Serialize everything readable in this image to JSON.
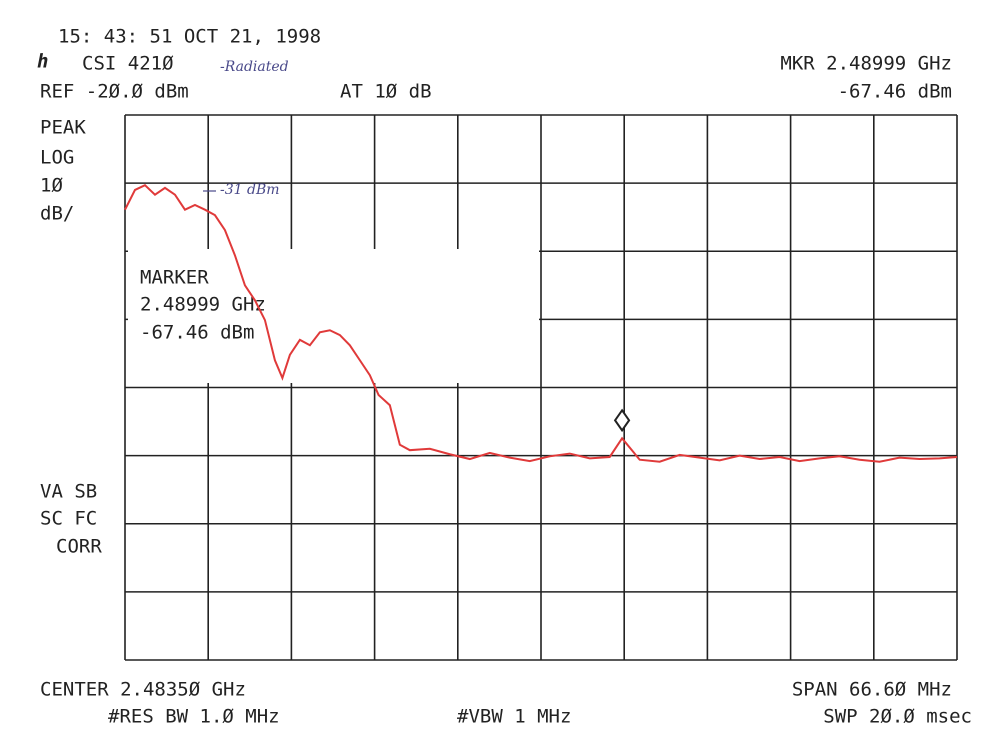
{
  "header": {
    "timestamp": "15: 43: 51 OCT 21, 1998",
    "instrument": "CSI 421Ø",
    "handwritten_note": "-Radiated",
    "marker_freq": "MKR 2.48999 GHz",
    "reference": "REF -2Ø.Ø dBm",
    "attenuation": "AT 1Ø dB",
    "marker_level": "-67.46 dBm"
  },
  "left_labels": [
    "PEAK",
    "LOG",
    "1Ø",
    "dB/",
    "VA SB",
    "SC FC",
    "CORR"
  ],
  "marker_box": [
    "MARKER",
    "2.48999 GHz",
    "-67.46 dBm"
  ],
  "peak_note": "-31 dBm",
  "footer": {
    "center": "CENTER 2.4835Ø GHz",
    "span": "SPAN 66.6Ø MHz",
    "res_bw": "#RES BW 1.Ø MHz",
    "vbw": "#VBW 1 MHz",
    "sweep": "SWP 2Ø.Ø msec"
  },
  "chart_data": {
    "type": "line",
    "xlim": [
      2.4502,
      2.5168
    ],
    "ylim": [
      -100,
      -20
    ],
    "x": [
      2.4502,
      2.451,
      2.4518,
      2.4526,
      2.4534,
      2.4542,
      2.455,
      2.4558,
      2.4566,
      2.4574,
      2.4582,
      2.459,
      2.4598,
      2.4606,
      2.4614,
      2.4622,
      2.4628,
      2.4634,
      2.4642,
      2.465,
      2.4658,
      2.4666,
      2.4674,
      2.4682,
      2.469,
      2.4698,
      2.4705,
      2.4714,
      2.4722,
      2.473,
      2.4746,
      2.4762,
      2.4778,
      2.4794,
      2.481,
      2.4826,
      2.4842,
      2.4858,
      2.4874,
      2.489,
      2.48999,
      2.4914,
      2.493,
      2.4946,
      2.4962,
      2.4978,
      2.4994,
      2.501,
      2.5026,
      2.5042,
      2.5058,
      2.5074,
      2.509,
      2.5106,
      2.5122,
      2.5138,
      2.5154,
      2.5168
    ],
    "series": [
      {
        "color": "#e03a3a",
        "values": [
          -33.9,
          -31.0,
          -30.3,
          -31.7,
          -30.7,
          -31.7,
          -33.9,
          -33.2,
          -33.9,
          -34.7,
          -36.9,
          -40.6,
          -45.0,
          -47.2,
          -50.1,
          -56.0,
          -58.6,
          -55.2,
          -53.0,
          -53.8,
          -51.9,
          -51.6,
          -52.3,
          -53.8,
          -56.0,
          -58.2,
          -61.1,
          -62.6,
          -68.4,
          -69.2,
          -69.0,
          -69.8,
          -70.5,
          -69.6,
          -70.3,
          -70.8,
          -70.1,
          -69.7,
          -70.4,
          -70.2,
          -67.46,
          -70.6,
          -70.9,
          -69.9,
          -70.3,
          -70.7,
          -70.0,
          -70.5,
          -70.2,
          -70.8,
          -70.4,
          -70.1,
          -70.6,
          -70.9,
          -70.3,
          -70.5,
          -70.4,
          -70.2
        ]
      }
    ],
    "marker": {
      "x": 2.48999,
      "y": -67.46
    }
  }
}
